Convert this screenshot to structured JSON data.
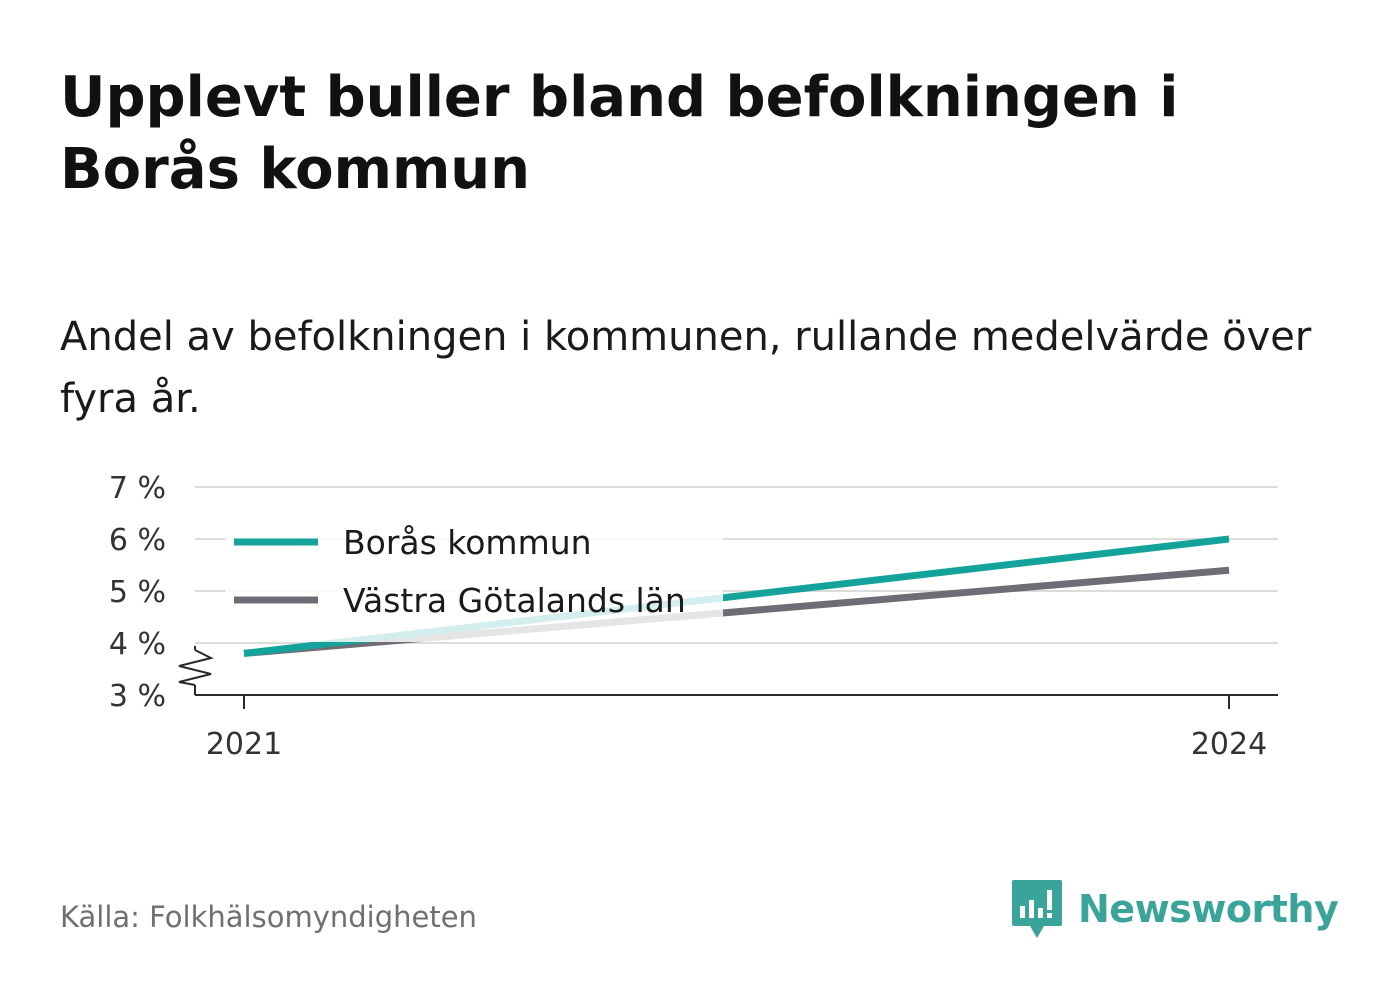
{
  "title": "Upplevt buller bland befolkningen i Borås kommun",
  "subtitle": "Andel av befolkningen i kommunen, rullande medelvärde över fyra år.",
  "source": "Källa: Folkhälsomyndigheten",
  "brand": {
    "name": "Newsworthy",
    "icon": "newsworthy-logo-icon",
    "color": "#3aa39a"
  },
  "chart_data": {
    "type": "line",
    "x": [
      2021,
      2024
    ],
    "x_tick_labels": [
      "2021",
      "2024"
    ],
    "y_ticks": [
      3,
      4,
      5,
      6,
      7
    ],
    "y_tick_labels": [
      "3 %",
      "4 %",
      "5 %",
      "6 %",
      "7 %"
    ],
    "ylim": [
      3,
      7
    ],
    "y_axis_break": true,
    "grid": true,
    "legend_position": "top-left",
    "series": [
      {
        "name": "Borås kommun",
        "color": "#14a39a",
        "values": [
          3.8,
          6.0
        ]
      },
      {
        "name": "Västra Götalands län",
        "color": "#6e6d76",
        "values": [
          3.8,
          5.4
        ]
      }
    ]
  }
}
